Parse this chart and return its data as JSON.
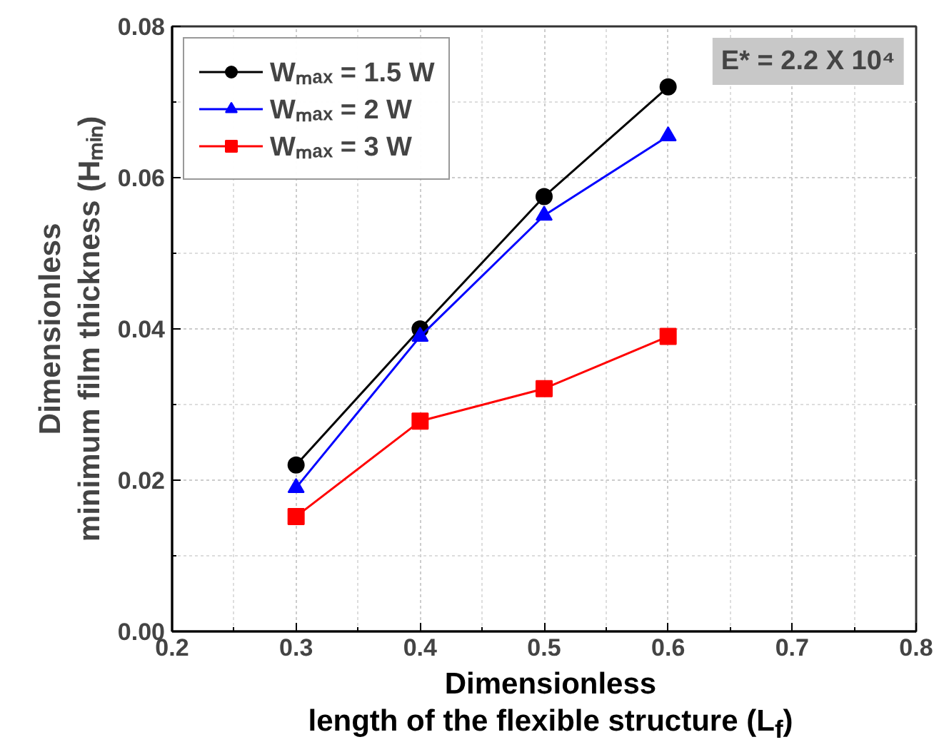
{
  "chart_data": {
    "type": "line",
    "xlabel": "Dimensionless\nlength of the flexible structure (L$_{f}$)",
    "ylabel": "Dimensionless\nminimum film thickness (Hₘᵢₙ)",
    "x": [
      0.3,
      0.4,
      0.5,
      0.6
    ],
    "series": [
      {
        "name": "Wₘₐₓ = 1.5 W",
        "color": "#000000",
        "marker": "circle",
        "values": [
          0.022,
          0.04,
          0.0575,
          0.072
        ]
      },
      {
        "name": "Wₘₐₓ = 2 W",
        "color": "#0000ff",
        "marker": "triangle",
        "values": [
          0.019,
          0.039,
          0.055,
          0.0655
        ]
      },
      {
        "name": "Wₘₐₓ = 3 W",
        "color": "#ff0000",
        "marker": "square",
        "values": [
          0.0152,
          0.0278,
          0.0321,
          0.039
        ]
      }
    ],
    "annotations": [
      "E* = 2.2 X 10⁴"
    ],
    "xlim": [
      0.2,
      0.8
    ],
    "ylim": [
      0.0,
      0.08
    ],
    "xticks": [
      0.2,
      0.3,
      0.4,
      0.5,
      0.6,
      0.7,
      0.8
    ],
    "yticks": [
      {
        "value": 0.0,
        "label": "0.00"
      },
      {
        "value": 0.02,
        "label": "0.02"
      },
      {
        "value": 0.04,
        "label": "0.04"
      },
      {
        "value": 0.06,
        "label": "0.06"
      },
      {
        "value": 0.08,
        "label": "0.08"
      }
    ],
    "grid": true,
    "legend": "top left",
    "line_style": "solid"
  }
}
